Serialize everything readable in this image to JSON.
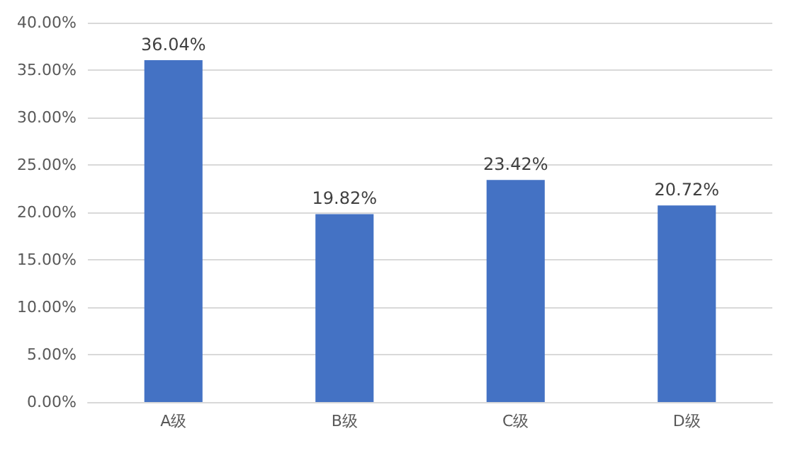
{
  "chart_data": {
    "type": "bar",
    "categories": [
      "A级",
      "B级",
      "C级",
      "D级"
    ],
    "values": [
      36.04,
      19.82,
      23.42,
      20.72
    ],
    "value_labels": [
      "36.04%",
      "19.82%",
      "23.42%",
      "20.72%"
    ],
    "color": "#4472c4",
    "ylim": [
      0,
      40
    ],
    "yticks": [
      {
        "value": 0,
        "label": "0.00%"
      },
      {
        "value": 5,
        "label": "5.00%"
      },
      {
        "value": 10,
        "label": "10.00%"
      },
      {
        "value": 15,
        "label": "15.00%"
      },
      {
        "value": 20,
        "label": "20.00%"
      },
      {
        "value": 25,
        "label": "25.00%"
      },
      {
        "value": 30,
        "label": "30.00%"
      },
      {
        "value": 35,
        "label": "35.00%"
      },
      {
        "value": 40,
        "label": "40.00%"
      }
    ],
    "grid": "y"
  }
}
